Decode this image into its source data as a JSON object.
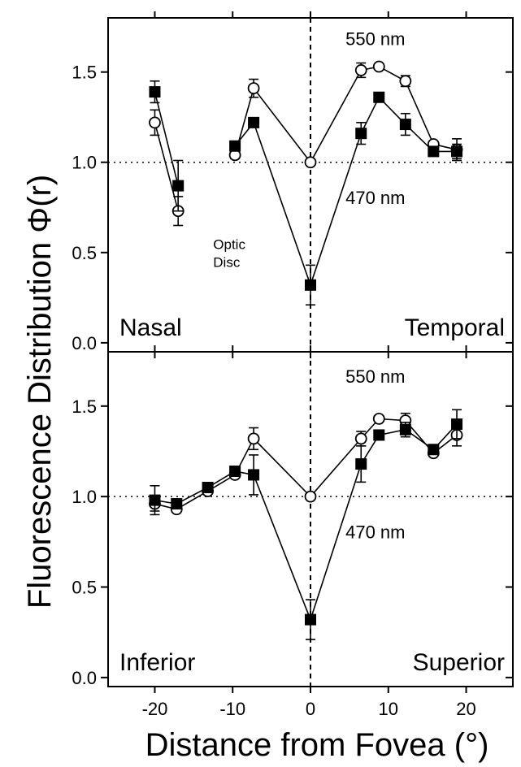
{
  "chart_data": {
    "type": "line",
    "xlabel": "Distance from Fovea (°)",
    "ylabel": "Fluorescence Distribution Φ(r)",
    "xlim": [
      -26,
      26
    ],
    "ylim": [
      -0.05,
      1.8
    ],
    "x_ticks": [
      -20,
      -10,
      0,
      10,
      20
    ],
    "y_ticks": [
      0.0,
      0.5,
      1.0,
      1.5
    ],
    "x_tick_labels": [
      "-20",
      "-10",
      "0",
      "10",
      "20"
    ],
    "y_tick_labels": [
      "0.0",
      "0.5",
      "1.0",
      "1.5"
    ],
    "reference_line_y": 1.0,
    "reference_line_x": 0,
    "grid": false,
    "panels": [
      {
        "left_label": "Nasal",
        "right_label": "Temporal",
        "annotations": [
          {
            "text": "550 nm",
            "x": 4.5,
            "y": 1.65
          },
          {
            "text": "470 nm",
            "x": 4.5,
            "y": 0.77
          },
          {
            "text": "Optic",
            "x": -12.5,
            "y": 0.52
          },
          {
            "text": "Disc",
            "x": -12.5,
            "y": 0.42
          }
        ],
        "series": [
          {
            "name": "550 nm",
            "marker": "open-circle",
            "segments": [
              {
                "x": [
                  -20,
                  -17
                ],
                "y": [
                  1.22,
                  0.73
                ],
                "err": [
                  0.07,
                  0.08
                ]
              },
              {
                "x": [
                  -9.7,
                  -7.3,
                  0,
                  6.5,
                  8.8,
                  12.2,
                  15.8,
                  18.8
                ],
                "y": [
                  1.04,
                  1.41,
                  1.0,
                  1.51,
                  1.53,
                  1.45,
                  1.1,
                  1.07
                ],
                "err": [
                  0.02,
                  0.05,
                  0.0,
                  0.04,
                  0.0,
                  0.03,
                  0.0,
                  0.06
                ]
              }
            ]
          },
          {
            "name": "470 nm",
            "marker": "filled-square",
            "segments": [
              {
                "x": [
                  -20,
                  -17
                ],
                "y": [
                  1.39,
                  0.87
                ],
                "err": [
                  0.06,
                  0.14
                ]
              },
              {
                "x": [
                  -9.7,
                  -7.3,
                  0,
                  6.5,
                  8.8,
                  12.2,
                  15.8,
                  18.8
                ],
                "y": [
                  1.09,
                  1.22,
                  0.32,
                  1.16,
                  1.36,
                  1.21,
                  1.06,
                  1.06
                ],
                "err": [
                  0.02,
                  0.0,
                  0.11,
                  0.06,
                  0.0,
                  0.06,
                  0.0,
                  0.04
                ]
              }
            ]
          }
        ]
      },
      {
        "left_label": "Inferior",
        "right_label": "Superior",
        "annotations": [
          {
            "text": "550 nm",
            "x": 4.5,
            "y": 1.63
          },
          {
            "text": "470 nm",
            "x": 4.5,
            "y": 0.77
          }
        ],
        "series": [
          {
            "name": "550 nm",
            "marker": "open-circle",
            "segments": [
              {
                "x": [
                  -20,
                  -17.2,
                  -13.2,
                  -9.7,
                  -7.3,
                  0,
                  6.5,
                  8.8,
                  12.2,
                  15.8,
                  18.8
                ],
                "y": [
                  0.96,
                  0.93,
                  1.03,
                  1.12,
                  1.32,
                  1.0,
                  1.32,
                  1.43,
                  1.42,
                  1.24,
                  1.34
                ],
                "err": [
                  0.04,
                  0.0,
                  0.0,
                  0.0,
                  0.06,
                  0.0,
                  0.04,
                  0.0,
                  0.04,
                  0.0,
                  0.06
                ]
              }
            ]
          },
          {
            "name": "470 nm",
            "marker": "filled-square",
            "segments": [
              {
                "x": [
                  -20,
                  -17.2,
                  -13.2,
                  -9.7,
                  -7.3,
                  0,
                  6.5,
                  8.8,
                  12.2,
                  15.8,
                  18.8
                ],
                "y": [
                  0.98,
                  0.96,
                  1.05,
                  1.14,
                  1.12,
                  0.32,
                  1.18,
                  1.34,
                  1.37,
                  1.26,
                  1.4
                ],
                "err": [
                  0.08,
                  0.0,
                  0.0,
                  0.0,
                  0.11,
                  0.11,
                  0.1,
                  0.0,
                  0.04,
                  0.0,
                  0.08
                ]
              }
            ]
          }
        ]
      }
    ]
  }
}
